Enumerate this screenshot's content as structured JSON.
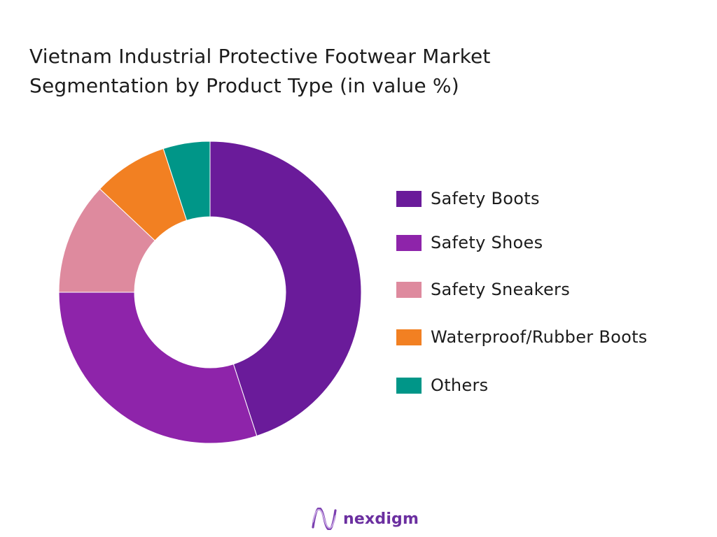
{
  "title_lines": [
    "Vietnam Industrial Protective Footwear Market",
    "Segmentation by Product Type (in value %)"
  ],
  "brand": {
    "name": "nexdigm",
    "logo_icon": "nexdigm-wave-logo-icon",
    "color": "#6b2fa0"
  },
  "chart_data": {
    "type": "pie",
    "variant": "donut",
    "title": "Vietnam Industrial Protective Footwear Market Segmentation by Product Type (in value %)",
    "categories": [
      "Safety Boots",
      "Safety Shoes",
      "Safety Sneakers",
      "Waterproof/Rubber Boots",
      "Others"
    ],
    "values": [
      45,
      30,
      12,
      8,
      5
    ],
    "colors": [
      "#6a1b9a",
      "#8e24aa",
      "#de8a9e",
      "#f28022",
      "#009688"
    ],
    "legend_position": "right",
    "start_angle_deg": 0,
    "direction": "clockwise"
  }
}
